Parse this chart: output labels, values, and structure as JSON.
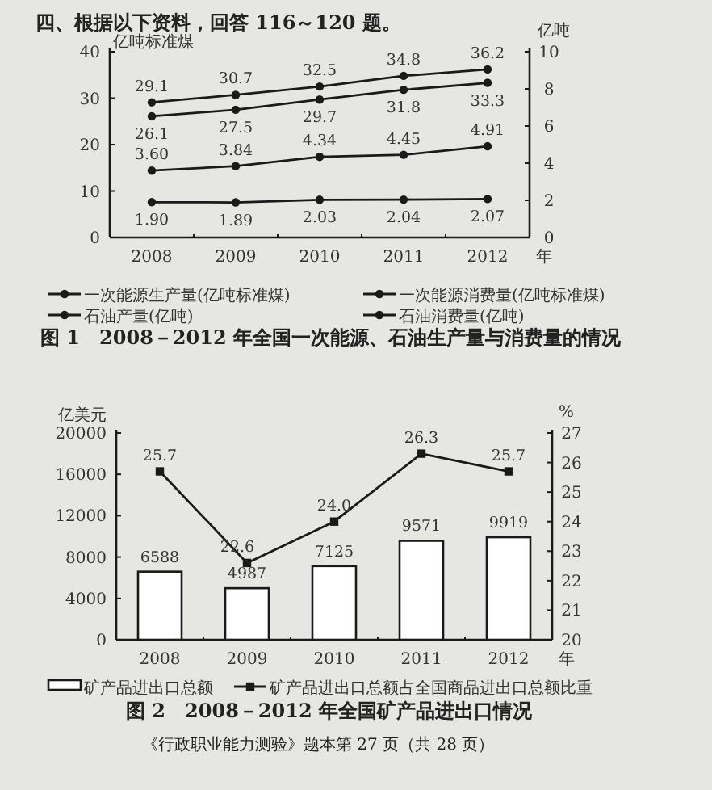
{
  "chart_data": [
    {
      "type": "line",
      "title": "图 1　2008－2012 年全国一次能源、石油生产量与消费量的情况",
      "annotations": [
        "四、根据以下资料，回答 116～120 题。"
      ],
      "xlabel": "年",
      "ylabel": "亿吨标准煤",
      "y2label": "亿吨",
      "categories": [
        "2008",
        "2009",
        "2010",
        "2011",
        "2012"
      ],
      "series": [
        {
          "name": "一次能源生产量(亿吨标准煤)",
          "color": "#1a1a1a",
          "values": [
            26.1,
            27.5,
            29.7,
            31.8,
            33.3
          ],
          "value_labels": [
            "26.1",
            "27.5",
            "29.7",
            "31.8",
            "33.3"
          ]
        },
        {
          "name": "一次能源消费量(亿吨标准煤)",
          "color": "#1a1a1a",
          "values": [
            29.1,
            30.7,
            32.5,
            34.8,
            36.2
          ],
          "value_labels": [
            "29.1",
            "30.7",
            "32.5",
            "34.8",
            "36.2"
          ]
        },
        {
          "name": "石油产量(亿吨)",
          "color": "#1a1a1a",
          "axis": "y2",
          "values": [
            1.9,
            1.89,
            2.03,
            2.04,
            2.07
          ],
          "value_labels": [
            "1.90",
            "1.89",
            "2.03",
            "2.04",
            "2.07"
          ]
        },
        {
          "name": "石油消费量(亿吨)",
          "color": "#1a1a1a",
          "axis": "y2",
          "values": [
            3.6,
            3.84,
            4.34,
            4.45,
            4.91
          ],
          "value_labels": [
            "3.60",
            "3.84",
            "4.34",
            "4.45",
            "4.91"
          ]
        }
      ],
      "ylim": [
        0,
        40
      ],
      "yticks": [
        0,
        10,
        20,
        30,
        40
      ],
      "y2lim": [
        0,
        10
      ],
      "y2ticks": [
        0,
        2,
        4,
        6,
        8,
        10
      ],
      "marker": "circle",
      "legend": "bottom"
    },
    {
      "type": "bar",
      "title": "图 2　2008－2012 年全国矿产品进出口情况",
      "annotations": [
        "《行政职业能力测验》题本第 27 页（共 28 页）"
      ],
      "xlabel": "年",
      "ylabel": "亿美元",
      "y2label": "%",
      "categories": [
        "2008",
        "2009",
        "2010",
        "2011",
        "2012"
      ],
      "series": [
        {
          "name": "矿产品进出口总额",
          "color": "#ffffff",
          "values": [
            6588,
            4987,
            7125,
            9571,
            9919
          ]
        },
        {
          "name": "矿产品进出口总额占全国商品进出口总额比重",
          "type": "line",
          "axis": "y2",
          "color": "#1a1a1a",
          "values": [
            25.7,
            22.6,
            24.0,
            26.3,
            25.7
          ],
          "value_labels": [
            "25.7",
            "22.6",
            "24.0",
            "26.3",
            "25.7"
          ]
        }
      ],
      "ylim": [
        0,
        20000
      ],
      "yticks": [
        0,
        4000,
        8000,
        12000,
        16000,
        20000
      ],
      "y2lim": [
        20,
        27
      ],
      "y2ticks": [
        20,
        21,
        22,
        23,
        24,
        25,
        26,
        27
      ],
      "marker": "square",
      "data_labels": true,
      "legend": "bottom"
    }
  ]
}
